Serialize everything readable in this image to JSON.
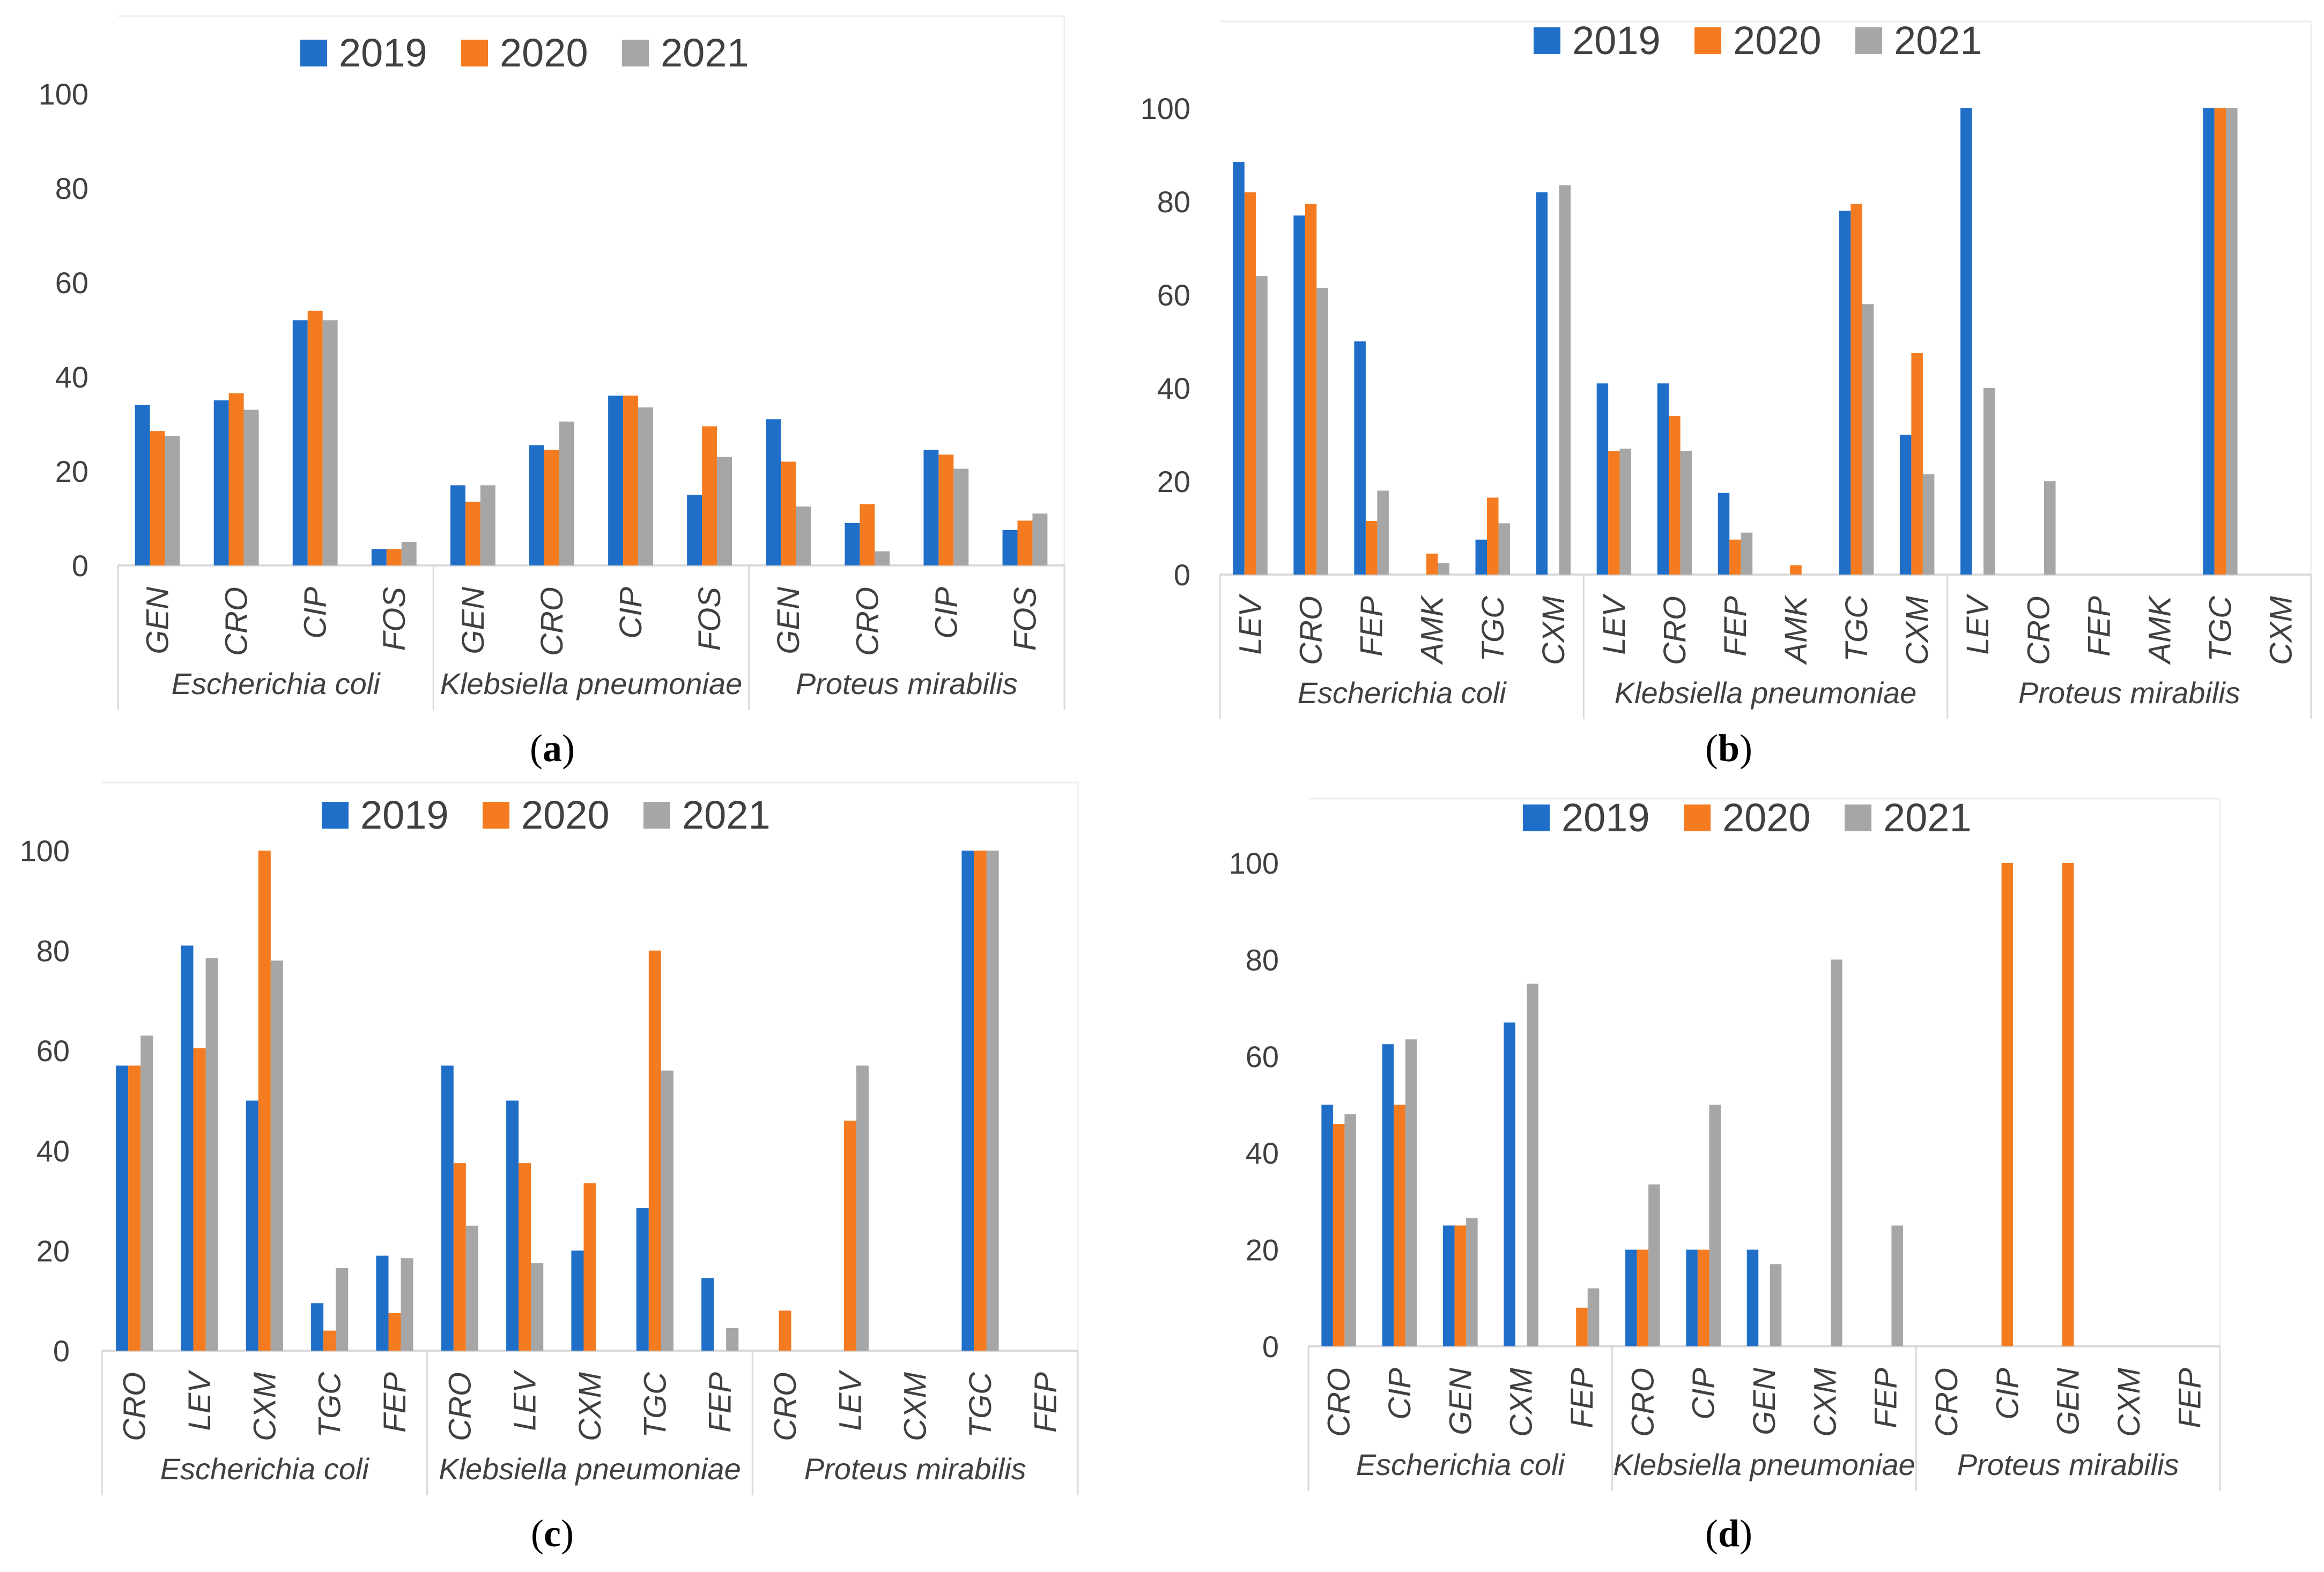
{
  "colors": {
    "y2019": "#1f6fc9",
    "y2020": "#f47b20",
    "y2021": "#a6a6a6",
    "axis": "#d9d9d9",
    "text": "#404040"
  },
  "panels": [
    {
      "caption_open": "(",
      "caption_letter": "a",
      "caption_close": ")"
    },
    {
      "caption_open": "(",
      "caption_letter": "b",
      "caption_close": ")"
    },
    {
      "caption_open": "(",
      "caption_letter": "c",
      "caption_close": ")"
    },
    {
      "caption_open": "(",
      "caption_letter": "d",
      "caption_close": ")"
    }
  ],
  "chart_data": [
    {
      "type": "bar",
      "title": "",
      "legend": [
        "2019",
        "2020",
        "2021"
      ],
      "ylim": [
        0,
        100
      ],
      "yticks": [
        0,
        20,
        40,
        60,
        80,
        100
      ],
      "groups": [
        {
          "name": "Escherichia coli",
          "categories": [
            "GEN",
            "CRO",
            "CIP",
            "FOS"
          ]
        },
        {
          "name": "Klebsiella pneumoniae",
          "categories": [
            "GEN",
            "CRO",
            "CIP",
            "FOS"
          ]
        },
        {
          "name": "Proteus mirabilis",
          "categories": [
            "GEN",
            "CRO",
            "CIP",
            "FOS"
          ]
        }
      ],
      "series": [
        {
          "name": "2019",
          "values": [
            34,
            35,
            52,
            3.5,
            17,
            25.5,
            36,
            15,
            31,
            9,
            24.5,
            7.5
          ]
        },
        {
          "name": "2020",
          "values": [
            28.5,
            36.5,
            54,
            3.5,
            13.5,
            24.5,
            36,
            29.5,
            22,
            13,
            23.5,
            9.5
          ]
        },
        {
          "name": "2021",
          "values": [
            27.5,
            33,
            52,
            5,
            17,
            30.5,
            33.5,
            23,
            12.5,
            3,
            20.5,
            11
          ]
        }
      ]
    },
    {
      "type": "bar",
      "title": "",
      "legend": [
        "2019",
        "2020",
        "2021"
      ],
      "ylim": [
        0,
        100
      ],
      "yticks": [
        0,
        20,
        40,
        60,
        80,
        100
      ],
      "groups": [
        {
          "name": "Escherichia coli",
          "categories": [
            "LEV",
            "CRO",
            "FEP",
            "AMK",
            "TGC",
            "CXM"
          ]
        },
        {
          "name": "Klebsiella pneumoniae",
          "categories": [
            "LEV",
            "CRO",
            "FEP",
            "AMK",
            "TGC",
            "CXM"
          ]
        },
        {
          "name": "Proteus mirabilis",
          "categories": [
            "LEV",
            "CRO",
            "FEP",
            "AMK",
            "TGC",
            "CXM"
          ]
        }
      ],
      "series": [
        {
          "name": "2019",
          "values": [
            88.5,
            77,
            50,
            0,
            7.5,
            82,
            41,
            41,
            17.5,
            0,
            78,
            30,
            100,
            0,
            0,
            0,
            100,
            0
          ]
        },
        {
          "name": "2020",
          "values": [
            82,
            79.5,
            11.5,
            4.5,
            16.5,
            0,
            26.5,
            34,
            7.5,
            2,
            79.5,
            47.5,
            0,
            0,
            0,
            0,
            100,
            0
          ]
        },
        {
          "name": "2021",
          "values": [
            64,
            61.5,
            18,
            2.5,
            11,
            83.5,
            27,
            26.5,
            9,
            0,
            58,
            21.5,
            40,
            20,
            0,
            0,
            100,
            0
          ]
        }
      ]
    },
    {
      "type": "bar",
      "title": "",
      "legend": [
        "2019",
        "2020",
        "2021"
      ],
      "ylim": [
        0,
        100
      ],
      "yticks": [
        0,
        20,
        40,
        60,
        80,
        100
      ],
      "groups": [
        {
          "name": "Escherichia coli",
          "categories": [
            "CRO",
            "LEV",
            "CXM",
            "TGC",
            "FEP"
          ]
        },
        {
          "name": "Klebsiella pneumoniae",
          "categories": [
            "CRO",
            "LEV",
            "CXM",
            "TGC",
            "FEP"
          ]
        },
        {
          "name": "Proteus mirabilis",
          "categories": [
            "CRO",
            "LEV",
            "CXM",
            "TGC",
            "FEP"
          ]
        }
      ],
      "series": [
        {
          "name": "2019",
          "values": [
            57,
            81,
            50,
            9.5,
            19,
            57,
            50,
            20,
            28.5,
            14.5,
            0,
            0,
            0,
            100,
            0
          ]
        },
        {
          "name": "2020",
          "values": [
            57,
            60.5,
            100,
            4,
            7.5,
            37.5,
            37.5,
            33.5,
            80,
            0,
            8,
            46,
            0,
            100,
            0
          ]
        },
        {
          "name": "2021",
          "values": [
            63,
            78.5,
            78,
            16.5,
            18.5,
            25,
            17.5,
            0,
            56,
            4.5,
            0,
            57,
            0,
            100,
            0
          ]
        }
      ]
    },
    {
      "type": "bar",
      "title": "",
      "legend": [
        "2019",
        "2020",
        "2021"
      ],
      "ylim": [
        0,
        100
      ],
      "yticks": [
        0,
        20,
        40,
        60,
        80,
        100
      ],
      "groups": [
        {
          "name": "Escherichia coli",
          "categories": [
            "CRO",
            "CIP",
            "GEN",
            "CXM",
            "FEP"
          ]
        },
        {
          "name": "Klebsiella pneumoniae",
          "categories": [
            "CRO",
            "CIP",
            "GEN",
            "CXM",
            "FEP"
          ]
        },
        {
          "name": "Proteus mirabilis",
          "categories": [
            "CRO",
            "CIP",
            "GEN",
            "CXM",
            "FEP"
          ]
        }
      ],
      "series": [
        {
          "name": "2019",
          "values": [
            50,
            62.5,
            25,
            67,
            0,
            20,
            20,
            20,
            0,
            0,
            0,
            0,
            0,
            0,
            0
          ]
        },
        {
          "name": "2020",
          "values": [
            46,
            50,
            25,
            0,
            8,
            20,
            20,
            0,
            0,
            0,
            0,
            100,
            100,
            0,
            0
          ]
        },
        {
          "name": "2021",
          "values": [
            48,
            63.5,
            26.5,
            75,
            12,
            33.5,
            50,
            17,
            80,
            25,
            0,
            0,
            0,
            0,
            0
          ]
        }
      ]
    }
  ]
}
